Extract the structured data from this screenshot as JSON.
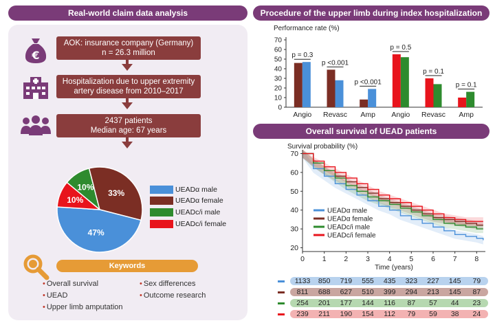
{
  "left_header": "Real-world claim data analysis",
  "right_header_top": "Procedure of the upper limb during index hospitalization",
  "right_header_mid": "Overall survival of UEAD patients",
  "flow": {
    "box1_line1": "AOK: insurance company (Germany)",
    "box1_line2": "n = 26.3 million",
    "box2_line1": "Hospitalization due to upper extremity",
    "box2_line2": "artery disease from 2010–2017",
    "box3_line1": "2437 patients",
    "box3_line2": "Median age: 67 years"
  },
  "icons": [
    "euro-money-bag-icon",
    "hospital-icon",
    "patients-group-icon",
    "magnifier-icon"
  ],
  "pie": {
    "slices": [
      {
        "label": "UEADα male",
        "percent": 47,
        "display": "47%",
        "color": "#4a90d9"
      },
      {
        "label": "UEADα female",
        "percent": 33,
        "display": "33%",
        "color": "#7b2e24"
      },
      {
        "label": "UEADc/i male",
        "percent": 10,
        "display": "10%",
        "color": "#2e8b2e"
      },
      {
        "label": "UEADc/i female",
        "percent": 10,
        "display": "10%",
        "color": "#e8141c"
      }
    ]
  },
  "keywords": {
    "title": "Keywords",
    "items": [
      "Overall survival",
      "Sex differences",
      "UEAD",
      "Outcome research",
      "Upper limb amputation"
    ]
  },
  "chart_data": [
    {
      "type": "bar",
      "ylabel": "Performance rate (%)",
      "ylim": [
        0,
        70
      ],
      "yticks": [
        0,
        10,
        20,
        30,
        40,
        50,
        60,
        70
      ],
      "categories": [
        "Angio",
        "Revasc",
        "Amp",
        "Angio",
        "Revasc",
        "Amp"
      ],
      "groups": [
        {
          "name": "UEADα",
          "categories": [
            "Angio",
            "Revasc",
            "Amp"
          ],
          "female": [
            46,
            39,
            8
          ],
          "male": [
            47,
            28,
            19
          ],
          "pvalues": [
            "p = 0.3",
            "p <0.001",
            "p <0.001"
          ],
          "female_color": "#7b2e24",
          "male_color": "#4a90d9"
        },
        {
          "name": "UEADc/i",
          "categories": [
            "Angio",
            "Revasc",
            "Amp"
          ],
          "female": [
            55,
            30,
            10
          ],
          "male": [
            52,
            24,
            16
          ],
          "pvalues": [
            "p = 0.5",
            "p = 0.1",
            "p = 0.1"
          ],
          "female_color": "#e8141c",
          "male_color": "#2e8b2e"
        }
      ]
    },
    {
      "type": "line",
      "ylabel": "Survival probability (%)",
      "xlabel": "Time (years)",
      "ylim": [
        18,
        72
      ],
      "yticks": [
        20,
        30,
        40,
        50,
        60,
        70
      ],
      "xlim": [
        0,
        8.4
      ],
      "xticks": [
        0,
        1,
        2,
        3,
        4,
        5,
        6,
        7,
        8
      ],
      "series": [
        {
          "name": "UEADα male",
          "color": "#4a90d9",
          "x": [
            0,
            0.5,
            1,
            1.5,
            2,
            2.5,
            3,
            3.5,
            4,
            4.5,
            5,
            5.5,
            6,
            6.5,
            7,
            7.5,
            8,
            8.3
          ],
          "y": [
            70,
            62,
            58,
            54,
            51,
            48,
            45,
            42,
            40,
            37,
            35,
            33,
            31,
            29,
            27,
            26,
            25,
            24
          ]
        },
        {
          "name": "UEADα female",
          "color": "#7b2e24",
          "x": [
            0,
            0.5,
            1,
            1.5,
            2,
            2.5,
            3,
            3.5,
            4,
            4.5,
            5,
            5.5,
            6,
            6.5,
            7,
            7.5,
            8,
            8.3
          ],
          "y": [
            70,
            65,
            61,
            58,
            55,
            52,
            49,
            46,
            44,
            42,
            40,
            38,
            36,
            35,
            34,
            33,
            32,
            32
          ]
        },
        {
          "name": "UEADc/i male",
          "color": "#2e8b2e",
          "x": [
            0,
            0.5,
            1,
            1.5,
            2,
            2.5,
            3,
            3.5,
            4,
            4.5,
            5,
            5.5,
            6,
            6.5,
            7,
            7.5,
            8,
            8.3
          ],
          "y": [
            70,
            65,
            61,
            57,
            53,
            50,
            47,
            45,
            43,
            41,
            39,
            37,
            35,
            33,
            32,
            31,
            30,
            30
          ]
        },
        {
          "name": "UEADc/i female",
          "color": "#e8141c",
          "x": [
            0,
            0.5,
            1,
            1.5,
            2,
            2.5,
            3,
            3.5,
            4,
            4.5,
            5,
            5.5,
            6,
            6.5,
            7,
            7.5,
            8,
            8.3
          ],
          "y": [
            70,
            66,
            63,
            60,
            57,
            54,
            51,
            48,
            46,
            44,
            42,
            40,
            38,
            36,
            35,
            34,
            34,
            34
          ]
        }
      ],
      "risk_table": [
        {
          "color": "#4a90d9",
          "bg": "#b8d2ee",
          "values": [
            "1133",
            "850",
            "719",
            "555",
            "435",
            "323",
            "227",
            "145",
            "79"
          ]
        },
        {
          "color": "#7b2e24",
          "bg": "#c9a6a0",
          "values": [
            "811",
            "688",
            "627",
            "510",
            "399",
            "294",
            "213",
            "145",
            "87"
          ]
        },
        {
          "color": "#2e8b2e",
          "bg": "#b6d8b0",
          "values": [
            "254",
            "201",
            "177",
            "144",
            "116",
            "87",
            "57",
            "44",
            "23"
          ]
        },
        {
          "color": "#e8141c",
          "bg": "#f3b2b2",
          "values": [
            "239",
            "211",
            "190",
            "154",
            "112",
            "79",
            "59",
            "38",
            "24"
          ]
        }
      ]
    }
  ]
}
